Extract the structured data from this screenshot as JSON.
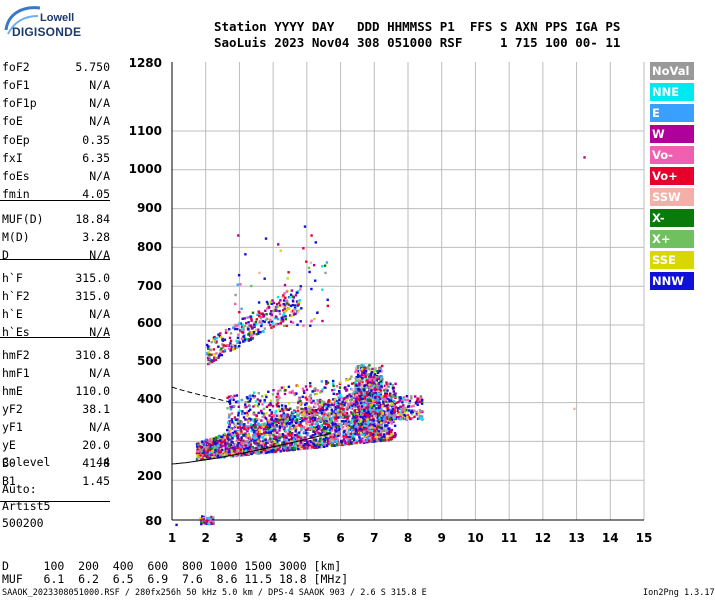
{
  "logo": {
    "line1": "Lowell",
    "line2": "DIGISONDE"
  },
  "header": {
    "line1": "Station YYYY DAY   DDD HHMMSS P1  FFS S AXN PPS IGA PS",
    "line2": "SaoLuis 2023 Nov04 308 051000 RSF     1 715 100 00- 11"
  },
  "params": [
    {
      "name": "foF2",
      "value": "5.750"
    },
    {
      "name": "foF1",
      "value": "N/A"
    },
    {
      "name": "foF1p",
      "value": "N/A"
    },
    {
      "name": "foE",
      "value": "N/A"
    },
    {
      "name": "foEp",
      "value": "0.35"
    },
    {
      "name": "fxI",
      "value": "6.35"
    },
    {
      "name": "foEs",
      "value": "N/A"
    },
    {
      "name": "fmin",
      "value": "4.05"
    },
    {
      "name": "MUF(D)",
      "value": "18.84"
    },
    {
      "name": "M(D)",
      "value": "3.28"
    },
    {
      "name": "D",
      "value": "N/A"
    },
    {
      "name": "h`F",
      "value": "315.0"
    },
    {
      "name": "h`F2",
      "value": "315.0"
    },
    {
      "name": "h`E",
      "value": "N/A"
    },
    {
      "name": "h`Es",
      "value": "N/A"
    },
    {
      "name": "hmF2",
      "value": "310.8"
    },
    {
      "name": "hmF1",
      "value": "N/A"
    },
    {
      "name": "hmE",
      "value": "110.0"
    },
    {
      "name": "yF2",
      "value": "38.1"
    },
    {
      "name": "yF1",
      "value": "N/A"
    },
    {
      "name": "yE",
      "value": "20.0"
    },
    {
      "name": "B0",
      "value": "41.8"
    },
    {
      "name": "B1",
      "value": "1.45"
    },
    {
      "name": "C-level",
      "value": "44"
    }
  ],
  "auto": {
    "label": "Auto:",
    "artist": "Artist5",
    "version": "500200"
  },
  "legend": [
    {
      "label": "NoVal",
      "color": "#999999"
    },
    {
      "label": "NNE",
      "color": "#00e8f0"
    },
    {
      "label": "E",
      "color": "#3aa0ff"
    },
    {
      "label": "W",
      "color": "#b0009c"
    },
    {
      "label": "Vo-",
      "color": "#f060b0"
    },
    {
      "label": "Vo+",
      "color": "#e8002c"
    },
    {
      "label": "SSW",
      "color": "#f4b0a8"
    },
    {
      "label": "X-",
      "color": "#0a7a0a"
    },
    {
      "label": "X+",
      "color": "#70c060"
    },
    {
      "label": "SSE",
      "color": "#d8d800"
    },
    {
      "label": "NNW",
      "color": "#1010d8"
    }
  ],
  "y_ticks": [
    "1280",
    "1100",
    "1000",
    "900",
    "800",
    "700",
    "600",
    "500",
    "400",
    "300",
    "200",
    "80"
  ],
  "x_ticks": [
    "1",
    "2",
    "3",
    "4",
    "5",
    "6",
    "7",
    "8",
    "9",
    "10",
    "11",
    "12",
    "13",
    "14",
    "15"
  ],
  "bottom": {
    "d_row": "D     100  200  400  600  800 1000 1500 3000 [km]",
    "muf_row": "MUF   6.1  6.2  6.5  6.9  7.6  8.6 11.5 18.8 [MHz]",
    "footer": "SAAOK_2023308051000.RSF / 280fx256h 50 kHz 5.0 km / DPS-4 SAAOK 903 / 2.6 S 315.8 E",
    "version": "Ion2Png 1.3.17"
  }
}
